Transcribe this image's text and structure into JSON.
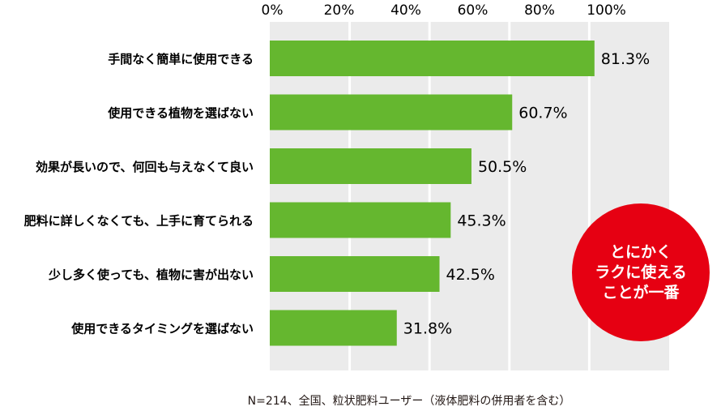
{
  "chart_data": {
    "type": "bar",
    "orientation": "horizontal",
    "categories": [
      "手間なく簡単に使用できる",
      "使用できる植物を選ばない",
      "効果が長いので、何回も与えなくて良い",
      "肥料に詳しくなくても、上手に育てられる",
      "少し多く使っても、植物に害が出ない",
      "使用できるタイミングを選ばない"
    ],
    "values": [
      81.3,
      60.7,
      50.5,
      45.3,
      42.5,
      31.8
    ],
    "value_labels": [
      "81.3%",
      "60.7%",
      "50.5%",
      "45.3%",
      "42.5%",
      "31.8%"
    ],
    "xlim": [
      0,
      100
    ],
    "x_ticks": [
      "0%",
      "20%",
      "40%",
      "60%",
      "80%",
      "100%"
    ],
    "axis_position": "top",
    "grid": true,
    "bar_color": "#65b72f",
    "plot_background": "#ebebeb"
  },
  "note": "N=214、全国、粒状肥料ユーザー（液体肥料の併用者を含む）",
  "badge": {
    "lines": [
      "とにかく",
      "ラクに使える",
      "ことが一番"
    ],
    "color": "#e60012"
  }
}
